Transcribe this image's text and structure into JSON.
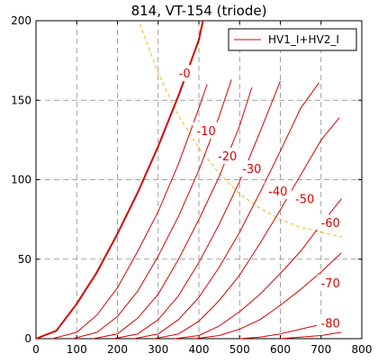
{
  "chart_data": {
    "type": "line",
    "title": "814, VT-154 (triode)",
    "xlabel": "",
    "ylabel": "",
    "xlim": [
      0,
      800
    ],
    "ylim": [
      0,
      200
    ],
    "x_ticks": [
      "0",
      "100",
      "200",
      "300",
      "400",
      "500",
      "600",
      "700",
      "800"
    ],
    "y_ticks": [
      "0",
      "50",
      "100",
      "150",
      "200"
    ],
    "grid": true,
    "legend": {
      "position": "top-right",
      "entries": [
        "HV1_I+HV2_I"
      ]
    },
    "colors": {
      "curve": "#dd0000",
      "load_line": "#f0b400",
      "grid": "#888888",
      "axis": "#000000"
    },
    "series": [
      {
        "label": "-0",
        "x": [
          0,
          50,
          100,
          150,
          200,
          250,
          300,
          350,
          400,
          410
        ],
        "y": [
          0,
          5,
          22,
          42,
          66,
          92,
          121,
          153,
          188,
          200
        ]
      },
      {
        "label": "-10",
        "x": [
          40,
          100,
          150,
          200,
          250,
          300,
          350,
          400,
          420
        ],
        "y": [
          0,
          4,
          15,
          32,
          55,
          80,
          110,
          145,
          160
        ]
      },
      {
        "label": "-20",
        "x": [
          90,
          150,
          200,
          250,
          300,
          350,
          400,
          450,
          480
        ],
        "y": [
          0,
          4,
          14,
          30,
          52,
          77,
          106,
          140,
          163
        ]
      },
      {
        "label": "-30",
        "x": [
          140,
          200,
          250,
          300,
          350,
          400,
          450,
          500,
          530
        ],
        "y": [
          0,
          3,
          13,
          28,
          50,
          75,
          102,
          134,
          158
        ]
      },
      {
        "label": "-40",
        "x": [
          190,
          250,
          300,
          350,
          400,
          450,
          500,
          550,
          600
        ],
        "y": [
          0,
          3,
          12,
          27,
          48,
          72,
          99,
          130,
          162
        ]
      },
      {
        "label": "-50",
        "x": [
          240,
          300,
          350,
          400,
          450,
          500,
          550,
          600,
          650,
          695
        ],
        "y": [
          0,
          3,
          12,
          26,
          45,
          67,
          92,
          118,
          145,
          161
        ]
      },
      {
        "label": "-60",
        "x": [
          290,
          350,
          400,
          450,
          500,
          550,
          600,
          650,
          700,
          745
        ],
        "y": [
          0,
          3,
          11,
          24,
          40,
          60,
          81,
          103,
          125,
          139
        ]
      },
      {
        "label": "-70",
        "x": [
          340,
          400,
          450,
          500,
          550,
          600,
          650,
          700,
          750
        ],
        "y": [
          0,
          2,
          8,
          17,
          28,
          41,
          55,
          72,
          88
        ]
      },
      {
        "label": "-80",
        "x": [
          390,
          450,
          500,
          550,
          600,
          650,
          700,
          750
        ],
        "y": [
          0,
          2,
          6,
          12,
          21,
          31,
          42,
          54
        ]
      },
      {
        "label": "",
        "x": [
          500,
          550,
          600,
          650,
          700,
          750
        ],
        "y": [
          0,
          1,
          3,
          6,
          9,
          13
        ]
      },
      {
        "label": "",
        "x": [
          600,
          650,
          700,
          750
        ],
        "y": [
          0,
          1,
          2,
          4
        ]
      }
    ],
    "load_line": {
      "x": [
        255,
        300,
        350,
        400,
        450,
        500,
        550,
        600,
        650,
        700,
        750
      ],
      "y": [
        198,
        167,
        140,
        120,
        104,
        91,
        82,
        75,
        70,
        67,
        64
      ]
    }
  }
}
